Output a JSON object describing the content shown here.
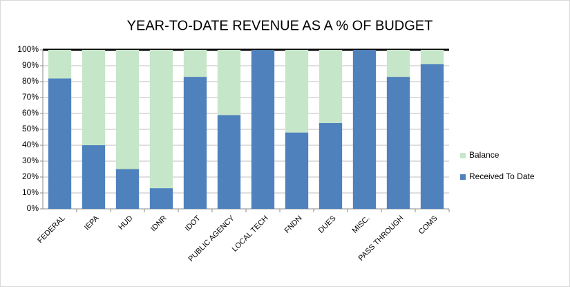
{
  "chart_data": {
    "type": "stacked_bar",
    "title": "YEAR-TO-DATE REVENUE AS A % OF BUDGET",
    "categories": [
      "FEDERAL",
      "IEPA",
      "HUD",
      "IDNR",
      "IDOT",
      "PUBLIC AGENCY",
      "LOCAL TECH",
      "FNDN",
      "DUES",
      "MISC.",
      "PASS THROUGH",
      "COMS"
    ],
    "series": [
      {
        "name": "Received To Date",
        "color": "#4f81bd",
        "values": [
          82,
          40,
          25,
          13,
          83,
          59,
          100,
          48,
          54,
          100,
          83,
          91
        ]
      },
      {
        "name": "Balance",
        "color": "#c6e6c9",
        "values": [
          18,
          60,
          75,
          87,
          17,
          41,
          0,
          52,
          46,
          0,
          17,
          9
        ]
      }
    ],
    "ylim": [
      0,
      100
    ],
    "yticks": [
      {
        "value": 0,
        "label": "0%"
      },
      {
        "value": 10,
        "label": "10%"
      },
      {
        "value": 20,
        "label": "20%"
      },
      {
        "value": 30,
        "label": "30%"
      },
      {
        "value": 40,
        "label": "40%"
      },
      {
        "value": 50,
        "label": "50%"
      },
      {
        "value": 60,
        "label": "60%"
      },
      {
        "value": 70,
        "label": "70%"
      },
      {
        "value": 80,
        "label": "80%"
      },
      {
        "value": 90,
        "label": "90%"
      },
      {
        "value": 100,
        "label": "100%"
      }
    ],
    "grid": true,
    "legend": "right"
  }
}
